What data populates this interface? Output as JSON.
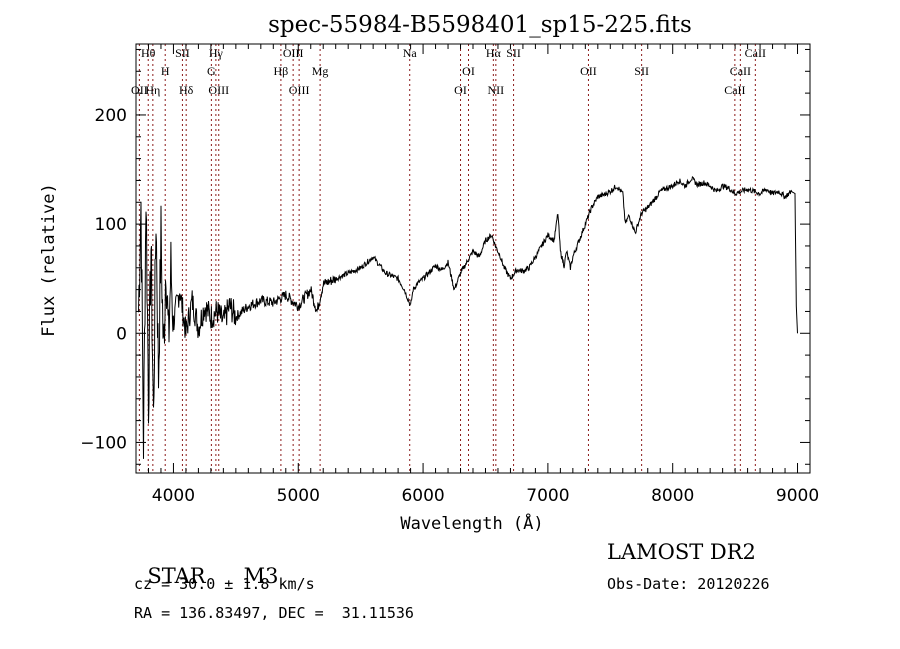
{
  "chart_data": {
    "type": "line",
    "title": "spec-55984-B5598401_sp15-225.fits",
    "xlabel": "Wavelength (Å)",
    "ylabel": "Flux (relative)",
    "xlim": [
      3700,
      9100
    ],
    "ylim": [
      -128,
      265
    ],
    "xticks": [
      4000,
      5000,
      6000,
      7000,
      8000,
      9000
    ],
    "xtick_labels": [
      "4000",
      "5000",
      "6000",
      "7000",
      "8000",
      "9000"
    ],
    "yticks": [
      -100,
      0,
      100,
      200
    ],
    "ytick_labels": [
      "−100",
      "0",
      "100",
      "200"
    ],
    "grid": false,
    "series": [
      {
        "name": "spectrum",
        "color": "#000000",
        "x": [
          3720,
          3740,
          3760,
          3780,
          3800,
          3820,
          3840,
          3860,
          3880,
          3900,
          3920,
          3940,
          3960,
          3980,
          4000,
          4050,
          4100,
          4150,
          4200,
          4250,
          4300,
          4350,
          4400,
          4450,
          4500,
          4600,
          4700,
          4800,
          4900,
          5000,
          5100,
          5150,
          5200,
          5300,
          5400,
          5500,
          5600,
          5700,
          5800,
          5850,
          5900,
          5920,
          5950,
          6000,
          6100,
          6150,
          6200,
          6250,
          6300,
          6350,
          6400,
          6450,
          6500,
          6550,
          6580,
          6620,
          6650,
          6700,
          6750,
          6800,
          6850,
          6900,
          6950,
          7000,
          7050,
          7080,
          7100,
          7130,
          7150,
          7180,
          7200,
          7250,
          7300,
          7350,
          7400,
          7450,
          7500,
          7550,
          7600,
          7620,
          7650,
          7700,
          7750,
          7800,
          7850,
          7900,
          7950,
          8000,
          8050,
          8100,
          8150,
          8200,
          8250,
          8300,
          8350,
          8400,
          8450,
          8500,
          8550,
          8600,
          8650,
          8700,
          8750,
          8800,
          8850,
          8900,
          8950,
          8980,
          8990,
          9000
        ],
        "y": [
          20,
          120,
          -100,
          130,
          -60,
          80,
          -80,
          110,
          -40,
          90,
          -20,
          70,
          -10,
          60,
          10,
          40,
          0,
          30,
          5,
          25,
          15,
          20,
          10,
          25,
          15,
          25,
          30,
          28,
          35,
          25,
          40,
          20,
          45,
          50,
          55,
          60,
          70,
          55,
          50,
          40,
          25,
          40,
          45,
          50,
          62,
          58,
          65,
          40,
          55,
          65,
          75,
          70,
          85,
          90,
          80,
          70,
          60,
          50,
          58,
          57,
          60,
          70,
          80,
          90,
          85,
          110,
          75,
          62,
          75,
          60,
          70,
          85,
          100,
          115,
          125,
          127,
          130,
          135,
          128,
          100,
          108,
          92,
          110,
          115,
          122,
          130,
          133,
          135,
          140,
          135,
          142,
          136,
          138,
          135,
          130,
          135,
          133,
          128,
          130,
          132,
          130,
          128,
          132,
          128,
          130,
          125,
          130,
          128,
          25,
          0
        ]
      }
    ],
    "spectral_lines": [
      {
        "label": "Hθ",
        "wavelength": 3798
      },
      {
        "label": "OII",
        "wavelength": 3727
      },
      {
        "label": "Hη",
        "wavelength": 3835
      },
      {
        "label": "SII",
        "wavelength": 4072
      },
      {
        "label": "H",
        "wavelength": 3934
      },
      {
        "label": "Hδ",
        "wavelength": 4102
      },
      {
        "label": "Hγ",
        "wavelength": 4340
      },
      {
        "label": "G",
        "wavelength": 4304
      },
      {
        "label": "OIII",
        "wavelength": 4363
      },
      {
        "label": "OIII",
        "wavelength": 4959
      },
      {
        "label": "Hβ",
        "wavelength": 4861
      },
      {
        "label": "OIII",
        "wavelength": 5007
      },
      {
        "label": "Mg",
        "wavelength": 5175
      },
      {
        "label": "Na",
        "wavelength": 5893
      },
      {
        "label": "OI",
        "wavelength": 6364
      },
      {
        "label": "OI",
        "wavelength": 6300
      },
      {
        "label": "Hα",
        "wavelength": 6563
      },
      {
        "label": "NII",
        "wavelength": 6583
      },
      {
        "label": "SII",
        "wavelength": 6725
      },
      {
        "label": "OII",
        "wavelength": 7325
      },
      {
        "label": "SII",
        "wavelength": 7751
      },
      {
        "label": "CaII",
        "wavelength": 8662
      },
      {
        "label": "CaII",
        "wavelength": 8542
      },
      {
        "label": "CaII",
        "wavelength": 8498
      }
    ],
    "line_color": "#8b1a1a"
  },
  "info": {
    "object_class": "STAR",
    "subclass": "M3",
    "cz": "cz = 30.0 ± 1.8 km/s",
    "coords": "RA = 136.83497, DEC =  31.11536",
    "survey": "LAMOST DR2",
    "obs_date": "Obs-Date: 20120226"
  }
}
